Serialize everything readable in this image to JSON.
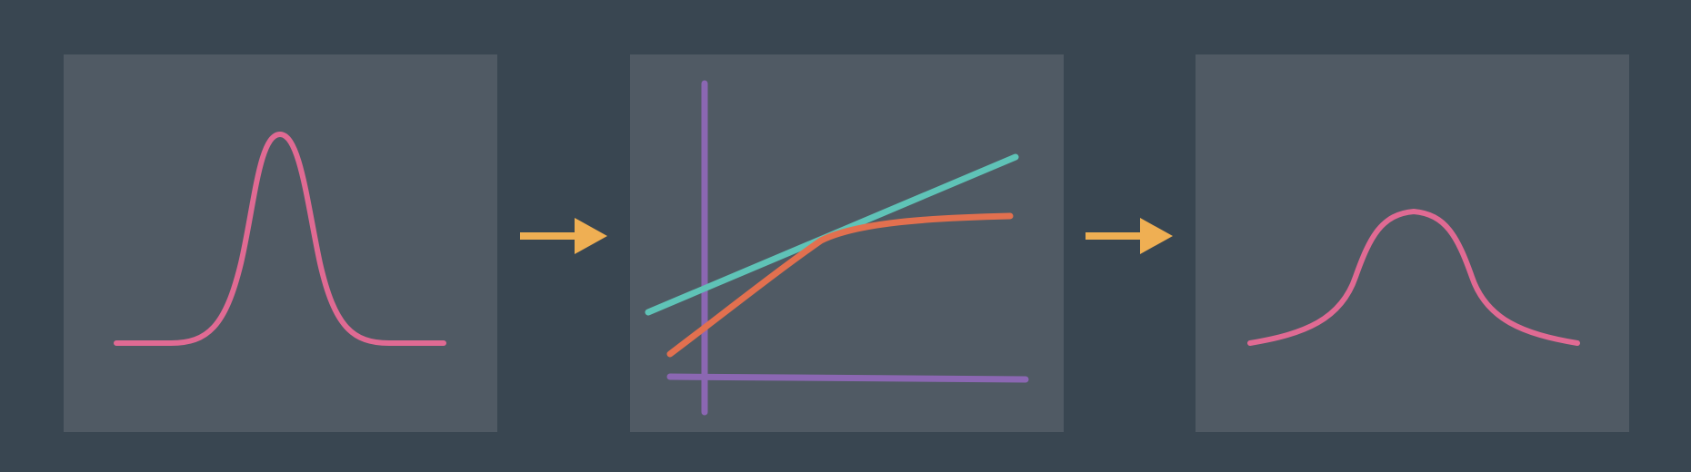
{
  "colors": {
    "background": "#394651",
    "panel": "#505a64",
    "input_curve": "#e06a93",
    "output_curve": "#e06a93",
    "axes": "#8b67b2",
    "linear_line": "#5fc3b7",
    "curved_line": "#e2704f",
    "arrow": "#efaf53"
  },
  "icons": {
    "arrow_1": "right-arrow-icon",
    "arrow_2": "right-arrow-icon"
  },
  "diagram": {
    "panels": [
      "input-distribution",
      "transfer-function",
      "output-distribution"
    ]
  }
}
